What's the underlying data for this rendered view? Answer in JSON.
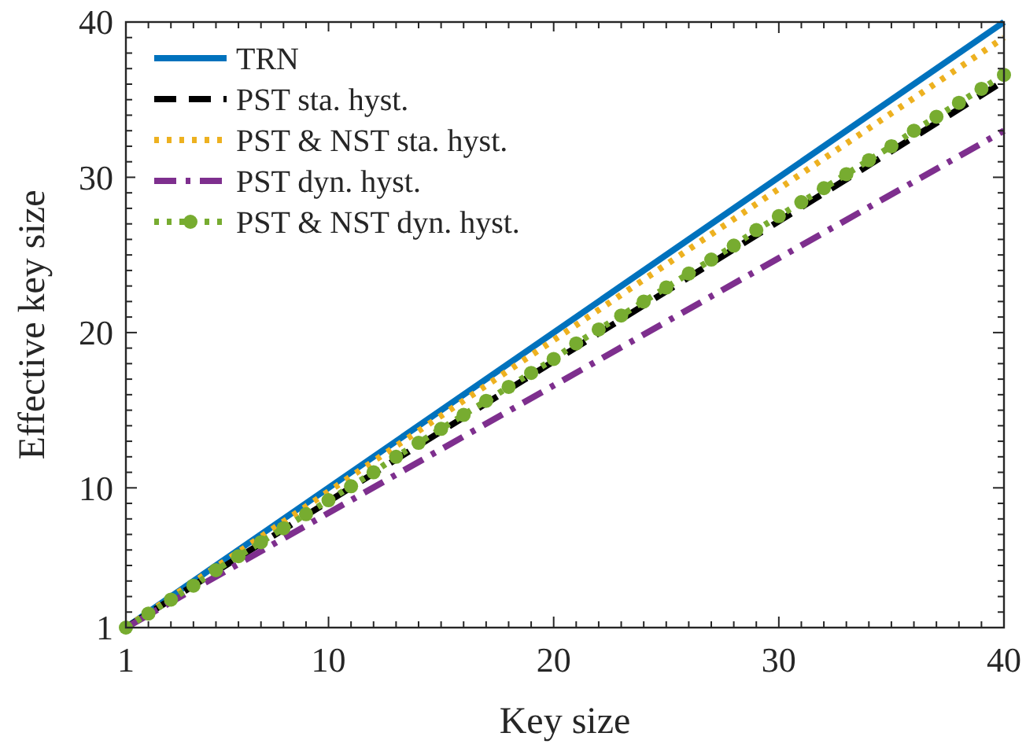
{
  "chart_data": {
    "type": "line",
    "xlabel": "Key size",
    "ylabel": "Effective key size",
    "legend": "top left",
    "marker": "none",
    "xlim": [
      1,
      40
    ],
    "ylim": [
      1,
      40
    ],
    "xticks": [
      1,
      {
        "value": 2,
        "label": null
      },
      {
        "value": 3,
        "label": null
      },
      {
        "value": 4,
        "label": null
      },
      {
        "value": 5,
        "label": null
      },
      {
        "value": 6,
        "label": null
      },
      {
        "value": 7,
        "label": null
      },
      {
        "value": 8,
        "label": null
      },
      {
        "value": 9,
        "label": null
      },
      10,
      {
        "value": 11,
        "label": null
      },
      {
        "value": 12,
        "label": null
      },
      {
        "value": 13,
        "label": null
      },
      {
        "value": 14,
        "label": null
      },
      {
        "value": 15,
        "label": null
      },
      {
        "value": 16,
        "label": null
      },
      {
        "value": 17,
        "label": null
      },
      {
        "value": 18,
        "label": null
      },
      {
        "value": 19,
        "label": null
      },
      20,
      {
        "value": 21,
        "label": null
      },
      {
        "value": 22,
        "label": null
      },
      {
        "value": 23,
        "label": null
      },
      {
        "value": 24,
        "label": null
      },
      {
        "value": 25,
        "label": null
      },
      {
        "value": 26,
        "label": null
      },
      {
        "value": 27,
        "label": null
      },
      {
        "value": 28,
        "label": null
      },
      {
        "value": 29,
        "label": null
      },
      30,
      {
        "value": 31,
        "label": null
      },
      {
        "value": 32,
        "label": null
      },
      {
        "value": 33,
        "label": null
      },
      {
        "value": 34,
        "label": null
      },
      {
        "value": 35,
        "label": null
      },
      {
        "value": 36,
        "label": null
      },
      {
        "value": 37,
        "label": null
      },
      {
        "value": 38,
        "label": null
      },
      {
        "value": 39,
        "label": null
      },
      40
    ],
    "yticks": [
      1,
      {
        "value": 2,
        "label": null
      },
      {
        "value": 3,
        "label": null
      },
      {
        "value": 4,
        "label": null
      },
      {
        "value": 5,
        "label": null
      },
      {
        "value": 6,
        "label": null
      },
      {
        "value": 7,
        "label": null
      },
      {
        "value": 8,
        "label": null
      },
      {
        "value": 9,
        "label": null
      },
      10,
      {
        "value": 11,
        "label": null
      },
      {
        "value": 12,
        "label": null
      },
      {
        "value": 13,
        "label": null
      },
      {
        "value": 14,
        "label": null
      },
      {
        "value": 15,
        "label": null
      },
      {
        "value": 16,
        "label": null
      },
      {
        "value": 17,
        "label": null
      },
      {
        "value": 18,
        "label": null
      },
      {
        "value": 19,
        "label": null
      },
      20,
      {
        "value": 21,
        "label": null
      },
      {
        "value": 22,
        "label": null
      },
      {
        "value": 23,
        "label": null
      },
      {
        "value": 24,
        "label": null
      },
      {
        "value": 25,
        "label": null
      },
      {
        "value": 26,
        "label": null
      },
      {
        "value": 27,
        "label": null
      },
      {
        "value": 28,
        "label": null
      },
      {
        "value": 29,
        "label": null
      },
      30,
      {
        "value": 31,
        "label": null
      },
      {
        "value": 32,
        "label": null
      },
      {
        "value": 33,
        "label": null
      },
      {
        "value": 34,
        "label": null
      },
      {
        "value": 35,
        "label": null
      },
      {
        "value": 36,
        "label": null
      },
      {
        "value": 37,
        "label": null
      },
      {
        "value": 38,
        "label": null
      },
      {
        "value": 39,
        "label": null
      },
      40
    ],
    "series": [
      {
        "name": "TRN",
        "color": "#0072bd",
        "line_style": "solid",
        "x": [
          1,
          40
        ],
        "values": [
          1,
          40
        ]
      },
      {
        "name": "PST sta. hyst.",
        "color": "#000000",
        "line_style": "dashed",
        "x": [
          1,
          40
        ],
        "values": [
          1,
          36.2
        ]
      },
      {
        "name": "PST & NST sta. hyst.",
        "color": "#edb120",
        "line_style": "dotted",
        "x": [
          1,
          40
        ],
        "values": [
          1,
          39
        ]
      },
      {
        "name": "PST dyn. hyst.",
        "color": "#7e2f8e",
        "line_style": "dashdot",
        "x": [
          1,
          40
        ],
        "values": [
          1,
          33
        ]
      },
      {
        "name": "PST & NST dyn. hyst.",
        "color": "#77ac30",
        "line_style": "dotted",
        "marker": "circle",
        "x": [
          1,
          2,
          3,
          4,
          5,
          6,
          7,
          8,
          9,
          10,
          11,
          12,
          13,
          14,
          15,
          16,
          17,
          18,
          19,
          20,
          21,
          22,
          23,
          24,
          25,
          26,
          27,
          28,
          29,
          30,
          31,
          32,
          33,
          34,
          35,
          36,
          37,
          38,
          39,
          40
        ],
        "values": [
          1,
          1.9,
          2.8,
          3.7,
          4.7,
          5.6,
          6.5,
          7.4,
          8.3,
          9.2,
          10.1,
          11,
          12,
          12.9,
          13.8,
          14.7,
          15.6,
          16.5,
          17.4,
          18.3,
          19.3,
          20.2,
          21.1,
          22,
          22.9,
          23.8,
          24.7,
          25.6,
          26.6,
          27.5,
          28.4,
          29.3,
          30.2,
          31.1,
          32,
          33,
          33.9,
          34.8,
          35.7,
          36.6
        ]
      }
    ]
  }
}
